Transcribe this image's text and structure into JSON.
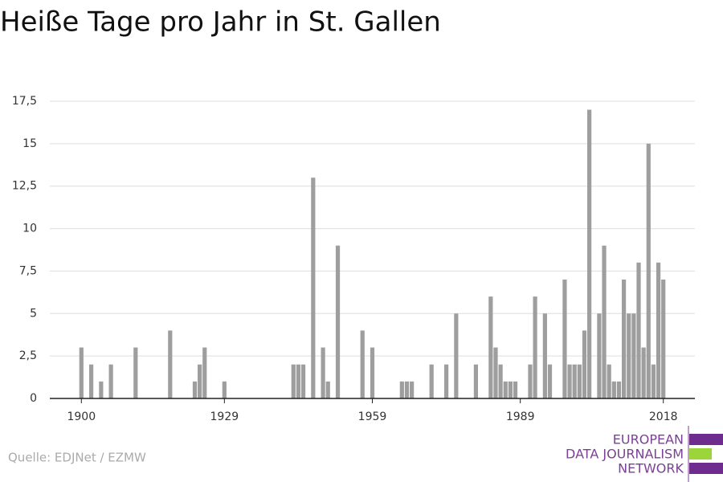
{
  "chart_data": {
    "type": "bar",
    "title": "Heiße Tage pro Jahr in St. Gallen",
    "x": [
      1900,
      1902,
      1904,
      1906,
      1911,
      1918,
      1923,
      1924,
      1925,
      1929,
      1943,
      1944,
      1945,
      1947,
      1949,
      1950,
      1952,
      1957,
      1959,
      1965,
      1966,
      1967,
      1971,
      1974,
      1976,
      1980,
      1983,
      1984,
      1985,
      1986,
      1987,
      1988,
      1991,
      1992,
      1994,
      1995,
      1998,
      1999,
      2000,
      2001,
      2002,
      2003,
      2005,
      2006,
      2007,
      2008,
      2009,
      2010,
      2011,
      2012,
      2013,
      2014,
      2015,
      2016,
      2017,
      2018
    ],
    "values": [
      3,
      2,
      1,
      2,
      3,
      4,
      1,
      2,
      3,
      1,
      2,
      2,
      2,
      13,
      3,
      1,
      9,
      4,
      3,
      1,
      1,
      1,
      2,
      2,
      5,
      2,
      6,
      3,
      2,
      1,
      1,
      1,
      2,
      6,
      5,
      2,
      7,
      2,
      2,
      2,
      4,
      17,
      5,
      9,
      2,
      1,
      1,
      7,
      5,
      5,
      8,
      3,
      15,
      2,
      8,
      7
    ],
    "color": "#9e9e9e",
    "xlim": [
      1893.6,
      2024.4
    ],
    "xticks": [
      1900,
      1929,
      1959,
      1989,
      2018
    ],
    "ylim": [
      0,
      17.5
    ],
    "yticks": [
      0,
      {
        "value": 2.5,
        "label": "2,5"
      },
      5,
      {
        "value": 7.5,
        "label": "7,5"
      },
      10,
      {
        "value": 12.5,
        "label": "12,5"
      },
      15,
      {
        "value": 17.5,
        "label": "17,5"
      }
    ],
    "grid": true,
    "source": "Quelle: EDJNet / EZMW"
  },
  "logo": {
    "lines": [
      "EUROPEAN",
      "DATA JOURNALISM",
      "NETWORK"
    ]
  }
}
